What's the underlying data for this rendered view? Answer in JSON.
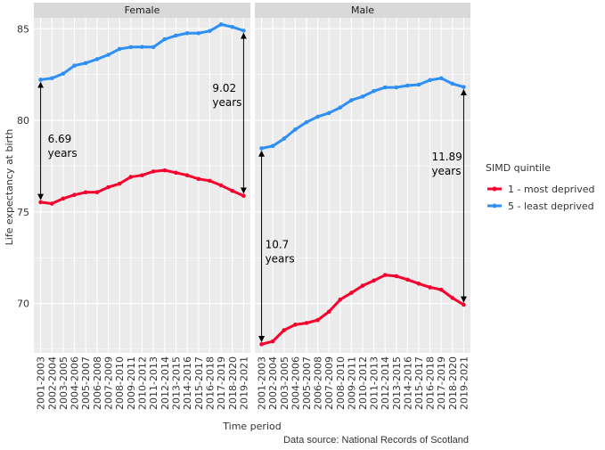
{
  "chart_data": {
    "type": "line",
    "xlabel": "Time period",
    "ylabel": "Life expectancy at birth",
    "caption": "Data source: National Records of Scotland",
    "ylim": [
      67.3,
      85.6
    ],
    "yticks": [
      70,
      75,
      80,
      85
    ],
    "grid": true,
    "legend": {
      "title": "SIMD quintile",
      "placement": "right"
    },
    "categories": [
      "2001-2003",
      "2002-2004",
      "2003-2005",
      "2004-2006",
      "2005-2007",
      "2006-2008",
      "2007-2009",
      "2008-2010",
      "2009-2011",
      "2010-2012",
      "2011-2013",
      "2012-2014",
      "2013-2015",
      "2014-2016",
      "2015-2017",
      "2016-2018",
      "2017-2019",
      "2018-2020",
      "2019-2021"
    ],
    "series_styles": [
      {
        "name": "1 - most deprived",
        "color": "#F8002E"
      },
      {
        "name": "5 - least deprived",
        "color": "#2E8FF5"
      }
    ],
    "panels": [
      {
        "title": "Female",
        "series": [
          {
            "name": "1 - most deprived",
            "values": [
              75.53,
              75.45,
              75.73,
              75.93,
              76.07,
              76.07,
              76.35,
              76.54,
              76.91,
              77.0,
              77.21,
              77.27,
              77.14,
              77.0,
              76.8,
              76.7,
              76.45,
              76.15,
              75.88
            ]
          },
          {
            "name": "5 - least deprived",
            "values": [
              82.22,
              82.3,
              82.55,
              82.99,
              83.13,
              83.34,
              83.58,
              83.9,
              84.0,
              84.01,
              84.0,
              84.43,
              84.63,
              84.76,
              84.76,
              84.88,
              85.24,
              85.1,
              84.9
            ]
          }
        ],
        "annotations": [
          {
            "at": "2001-2003",
            "from": 75.53,
            "to": 82.22,
            "value": "6.69",
            "unit": "years"
          },
          {
            "at": "2019-2021",
            "from": 75.88,
            "to": 84.9,
            "value": "9.02",
            "unit": "years"
          }
        ]
      },
      {
        "title": "Male",
        "series": [
          {
            "name": "1 - most deprived",
            "values": [
              67.77,
              67.93,
              68.54,
              68.84,
              68.93,
              69.09,
              69.55,
              70.21,
              70.58,
              70.97,
              71.25,
              71.55,
              71.49,
              71.3,
              71.08,
              70.88,
              70.75,
              70.3,
              69.93
            ]
          },
          {
            "name": "5 - least deprived",
            "values": [
              78.47,
              78.6,
              79.0,
              79.5,
              79.9,
              80.2,
              80.4,
              80.7,
              81.1,
              81.3,
              81.6,
              81.8,
              81.8,
              81.9,
              81.95,
              82.2,
              82.3,
              82.0,
              81.82
            ]
          }
        ],
        "annotations": [
          {
            "at": "2001-2003",
            "from": 67.77,
            "to": 78.47,
            "value": "10.7",
            "unit": "years"
          },
          {
            "at": "2019-2021",
            "from": 69.93,
            "to": 81.82,
            "value": "11.89",
            "unit": "years"
          }
        ]
      }
    ]
  }
}
